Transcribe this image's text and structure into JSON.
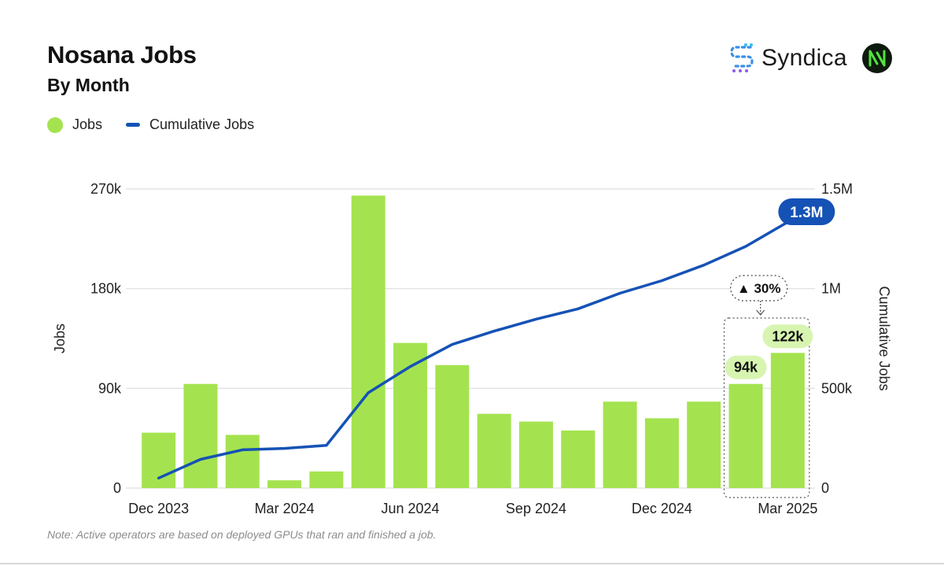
{
  "header": {
    "title": "Nosana Jobs",
    "subtitle": "By Month",
    "brand_name": "Syndica"
  },
  "legend": {
    "jobs": "Jobs",
    "cumulative": "Cumulative Jobs"
  },
  "colors": {
    "bar": "#a4e34f",
    "line": "#1552b5",
    "grid": "#e3e3e3",
    "bar_label_bg": "#d7f5b0",
    "line_label_bg": "#1552b5"
  },
  "note": "Note: Active operators are based on deployed GPUs that ran and finished a job.",
  "chart_data": {
    "type": "bar",
    "categories": [
      "Dec 2023",
      "Jan 2024",
      "Feb 2024",
      "Mar 2024",
      "Apr 2024",
      "May 2024",
      "Jun 2024",
      "Jul 2024",
      "Aug 2024",
      "Sep 2024",
      "Oct 2024",
      "Nov 2024",
      "Dec 2024",
      "Jan 2025",
      "Feb 2025",
      "Mar 2025"
    ],
    "series": [
      {
        "name": "Jobs",
        "type": "bar",
        "axis": "left",
        "values": [
          50000,
          94000,
          48000,
          7000,
          15000,
          264000,
          131000,
          111000,
          67000,
          60000,
          52000,
          78000,
          63000,
          78000,
          94000,
          122000
        ]
      },
      {
        "name": "Cumulative Jobs",
        "type": "line",
        "axis": "right",
        "values": [
          50000,
          144000,
          192000,
          199000,
          214000,
          478000,
          609000,
          720000,
          787000,
          847000,
          899000,
          977000,
          1040000,
          1118000,
          1212000,
          1334000
        ]
      }
    ],
    "xtick_labels": [
      "Dec 2023",
      "Mar 2024",
      "Jun 2024",
      "Sep 2024",
      "Dec 2024",
      "Mar 2025"
    ],
    "ylabel": "Jobs",
    "ylabel_right": "Cumulative Jobs",
    "ylim": [
      0,
      270000
    ],
    "ylim_right": [
      0,
      1500000
    ],
    "yticks": [
      "0",
      "90k",
      "180k",
      "270k"
    ],
    "yticks_right": [
      "0",
      "500k",
      "1M",
      "1.5M"
    ],
    "grid": true,
    "legend_position": "top-left",
    "annotations": {
      "bar_labels": [
        {
          "index": 14,
          "text": "94k"
        },
        {
          "index": 15,
          "text": "122k"
        }
      ],
      "line_end_label": "1.3M",
      "change_label": "▲ 30%"
    }
  }
}
